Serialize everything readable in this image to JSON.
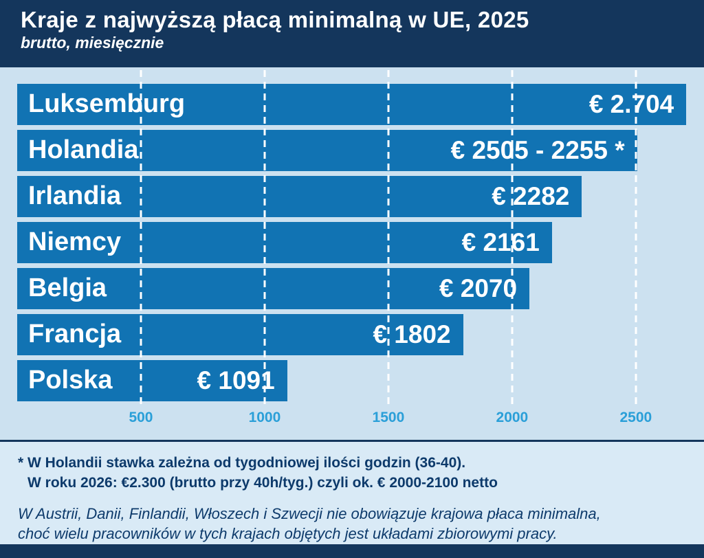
{
  "header": {
    "title": "Kraje z najwyższą płacą minimalną w UE, 2025",
    "subtitle": "brutto, miesięcznie"
  },
  "chart_data": {
    "type": "bar",
    "orientation": "horizontal",
    "title": "Kraje z najwyższą płacą minimalną w UE, 2025",
    "subtitle": "brutto, miesięcznie",
    "categories": [
      "Luksemburg",
      "Holandia",
      "Irlandia",
      "Niemcy",
      "Belgia",
      "Francja",
      "Polska"
    ],
    "values": [
      2704,
      2505,
      2282,
      2161,
      2070,
      1802,
      1091
    ],
    "value_labels": [
      "€ 2.704",
      "€ 2505 - 2255 *",
      "€ 2282",
      "€ 2161",
      "€ 2070",
      "€ 1802",
      "€ 1091"
    ],
    "xticks": [
      500,
      1000,
      1500,
      2000,
      2500
    ],
    "xtick_labels": [
      "500",
      "1000",
      "1500",
      "2000",
      "2500"
    ],
    "xlim": [
      0,
      2706
    ],
    "grid": true,
    "legend": false,
    "bar_color": "#1173b3"
  },
  "footnotes": {
    "note1_line1": "* W Holandii stawka zależna od tygodniowej ilości godzin (36-40).",
    "note1_line2": "W roku 2026: €2.300 (brutto przy 40h/tyg.) czyli ok. € 2000-2100 netto",
    "note2_line1": "W Austrii, Danii, Finlandii, Włoszech i Szwecji nie obowiązuje krajowa płaca minimalna,",
    "note2_line2": "choć wielu pracowników w tych krajach objętych jest układami zbiorowymi pracy."
  },
  "colors": {
    "header_bg": "#14365c",
    "chart_bg": "#cce1f0",
    "bar": "#1173b3",
    "gridline": "#ffffff",
    "tick_label": "#2a9fd8",
    "note_text": "#0d3a6b",
    "notes_bg": "#d9eaf6",
    "footer_bg": "#14365c"
  }
}
